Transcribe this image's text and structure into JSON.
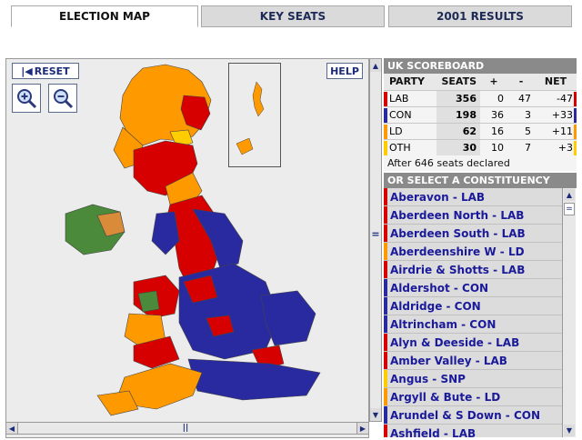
{
  "tabs": [
    {
      "label": "ELECTION MAP"
    },
    {
      "label": "KEY SEATS"
    },
    {
      "label": "2001 RESULTS"
    }
  ],
  "map": {
    "reset_label": "RESET",
    "help_label": "HELP",
    "zoom_in_icon": "zoom-in-magnifier",
    "zoom_out_icon": "zoom-out-magnifier"
  },
  "colors": {
    "LAB": "#d70000",
    "CON": "#2a2aa0",
    "LD": "#ff9900",
    "OTH": "#ffcc00",
    "SNP": "#ffcc00",
    "green": "#4a8a3a"
  },
  "scoreboard": {
    "title": "UK SCOREBOARD",
    "headers": [
      "PARTY",
      "SEATS",
      "+",
      "-",
      "NET"
    ],
    "rows": [
      {
        "party": "LAB",
        "seats": "356",
        "plus": "0",
        "minus": "47",
        "net": "-47"
      },
      {
        "party": "CON",
        "seats": "198",
        "plus": "36",
        "minus": "3",
        "net": "+33"
      },
      {
        "party": "LD",
        "seats": "62",
        "plus": "16",
        "minus": "5",
        "net": "+11"
      },
      {
        "party": "OTH",
        "seats": "30",
        "plus": "10",
        "minus": "7",
        "net": "+3"
      }
    ],
    "declared": "After 646 seats declared"
  },
  "constituencies": {
    "title": "OR SELECT A CONSTITUENCY",
    "items": [
      {
        "label": "Aberavon - LAB",
        "party": "LAB"
      },
      {
        "label": "Aberdeen North - LAB",
        "party": "LAB"
      },
      {
        "label": "Aberdeen South - LAB",
        "party": "LAB"
      },
      {
        "label": "Aberdeenshire W - LD",
        "party": "LD"
      },
      {
        "label": "Airdrie & Shotts - LAB",
        "party": "LAB"
      },
      {
        "label": "Aldershot - CON",
        "party": "CON"
      },
      {
        "label": "Aldridge - CON",
        "party": "CON"
      },
      {
        "label": "Altrincham - CON",
        "party": "CON"
      },
      {
        "label": "Alyn & Deeside - LAB",
        "party": "LAB"
      },
      {
        "label": "Amber Valley - LAB",
        "party": "LAB"
      },
      {
        "label": "Angus - SNP",
        "party": "SNP"
      },
      {
        "label": "Argyll & Bute - LD",
        "party": "LD"
      },
      {
        "label": "Arundel & S Down - CON",
        "party": "CON"
      },
      {
        "label": "Ashfield - LAB",
        "party": "LAB"
      }
    ]
  }
}
